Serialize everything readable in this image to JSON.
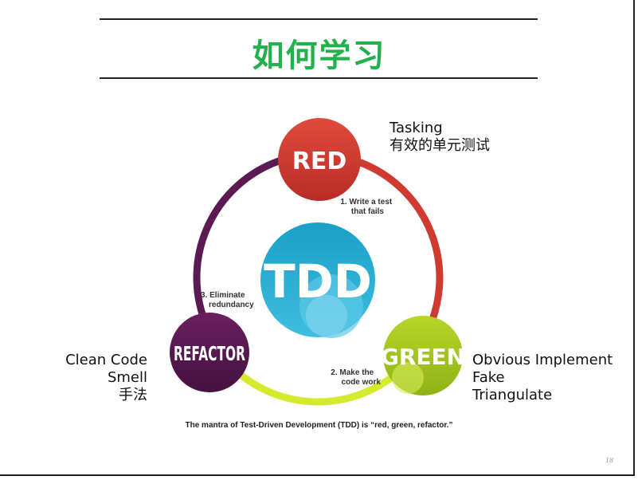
{
  "title": "如何学习",
  "cycle": {
    "center": "TDD",
    "nodes": {
      "red": "RED",
      "green": "GREEN",
      "refactor": "REFACTOR"
    },
    "steps": {
      "step1": [
        "1. Write a test",
        "that fails"
      ],
      "step2": [
        "2. Make the",
        "code work"
      ],
      "step3": [
        "3. Eliminate",
        "redundancy"
      ]
    },
    "colors": {
      "red": "#d03b30",
      "green": "#a8c81e",
      "refactor": "#55164d",
      "tdd": "#1ea3c8"
    },
    "caption": "The mantra of Test-Driven Development (TDD) is “red, green, refactor.”"
  },
  "notes": {
    "tasking": [
      "Tasking",
      "有效的单元测试"
    ],
    "left": [
      "Clean Code",
      "Smell",
      "手法"
    ],
    "right": [
      "Obvious Implement",
      "Fake",
      "Triangulate"
    ]
  },
  "page_number": "18"
}
